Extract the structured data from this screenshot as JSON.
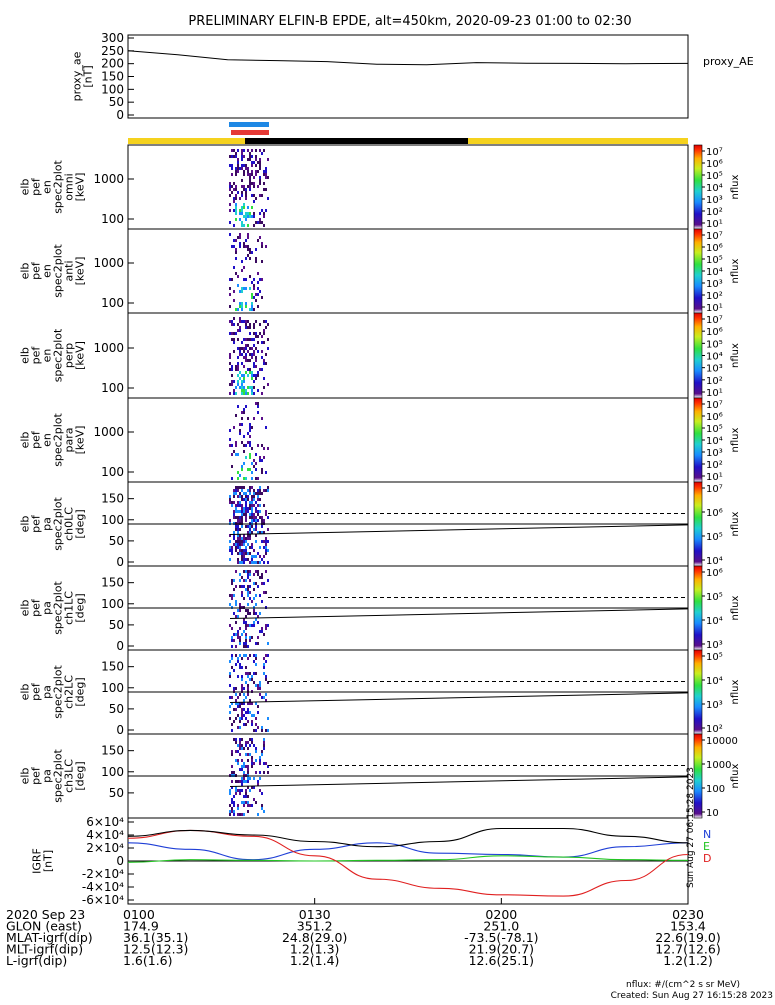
{
  "title": "PRELIMINARY ELFIN-B EPDE, alt=450km, 2020-09-23 01:00 to 02:30",
  "colors": {
    "yellow_bar": "#f5d21e",
    "black_bar": "#000000",
    "blue_mark": "#1e88e5",
    "red_mark": "#e53935",
    "bx": "#1f3fd6",
    "by": "#22c422",
    "bz": "#e02020",
    "bt": "#000000"
  },
  "chart_data": [
    {
      "name": "proxy_ae",
      "type": "line",
      "ylabel": "proxy_ae [nT]",
      "legend": "proxy_AE",
      "ylim": [
        0,
        300
      ],
      "yticks": [
        "0",
        "50",
        "100",
        "150",
        "200",
        "250",
        "300"
      ],
      "x_minutes": [
        0,
        8,
        16,
        24,
        32,
        40,
        48,
        56,
        64,
        72,
        80,
        90
      ],
      "values": [
        250,
        235,
        215,
        212,
        208,
        198,
        196,
        204,
        202,
        201,
        200,
        201
      ]
    },
    {
      "name": "omni",
      "type": "heatmap",
      "ylabel": "elb pef en spec2plot omni [keV]",
      "yticks": [
        "100",
        "1000"
      ],
      "colorbar": {
        "label": "nflux",
        "ticks": [
          "10¹",
          "10²",
          "10³",
          "10⁴",
          "10⁵",
          "10⁶",
          "10⁷"
        ]
      }
    },
    {
      "name": "anti",
      "type": "heatmap",
      "ylabel": "elb pef en spec2plot anti [keV]",
      "yticks": [
        "100",
        "1000"
      ],
      "colorbar": {
        "label": "nflux",
        "ticks": [
          "10¹",
          "10²",
          "10³",
          "10⁴",
          "10⁵",
          "10⁶",
          "10⁷"
        ]
      }
    },
    {
      "name": "perp",
      "type": "heatmap",
      "ylabel": "elb pef en spec2plot perp [keV]",
      "yticks": [
        "100",
        "1000"
      ],
      "colorbar": {
        "label": "nflux",
        "ticks": [
          "10¹",
          "10²",
          "10³",
          "10⁴",
          "10⁵",
          "10⁶",
          "10⁷"
        ]
      }
    },
    {
      "name": "para",
      "type": "heatmap",
      "ylabel": "elb pef en spec2plot para [keV]",
      "yticks": [
        "100",
        "1000"
      ],
      "colorbar": {
        "label": "nflux",
        "ticks": [
          "10¹",
          "10²",
          "10³",
          "10⁴",
          "10⁵",
          "10⁶",
          "10⁷"
        ]
      }
    },
    {
      "name": "ch0LC",
      "type": "heatmap",
      "ylabel": "elb pef pa spec2plot ch0LC [deg]",
      "yticks": [
        "0",
        "50",
        "100",
        "150"
      ],
      "colorbar": {
        "label": "nflux",
        "ticks": [
          "10⁴",
          "10⁵",
          "10⁶",
          "10⁷"
        ]
      }
    },
    {
      "name": "ch1LC",
      "type": "heatmap",
      "ylabel": "elb pef pa spec2plot ch1LC [deg]",
      "yticks": [
        "0",
        "50",
        "100",
        "150"
      ],
      "colorbar": {
        "label": "nflux",
        "ticks": [
          "10³",
          "10⁴",
          "10⁵",
          "10⁶"
        ]
      }
    },
    {
      "name": "ch2LC",
      "type": "heatmap",
      "ylabel": "elb pef pa spec2plot ch2LC [deg]",
      "yticks": [
        "0",
        "50",
        "100",
        "150"
      ],
      "colorbar": {
        "label": "nflux",
        "ticks": [
          "10²",
          "10³",
          "10⁴",
          "10⁵"
        ]
      }
    },
    {
      "name": "ch3LC",
      "type": "heatmap",
      "ylabel": "elb pef pa spec2plot ch3LC [deg]",
      "yticks": [
        "50",
        "100",
        "150"
      ],
      "colorbar": {
        "label": "nflux",
        "ticks": [
          "10",
          "100",
          "1000",
          "10000"
        ]
      }
    },
    {
      "name": "igrf",
      "type": "line",
      "ylabel": "IGRF [nT]",
      "ylim": [
        -60000,
        60000
      ],
      "yticks": [
        "-6×10⁴",
        "-4×10⁴",
        "-2×10⁴",
        "0",
        "2×10⁴",
        "4×10⁴",
        "6×10⁴"
      ],
      "side_labels": [
        "N",
        "E",
        "D"
      ],
      "x_minutes": [
        0,
        10,
        20,
        30,
        40,
        50,
        60,
        70,
        80,
        90
      ],
      "series": [
        {
          "name": "N",
          "values": [
            28000,
            18000,
            2000,
            18000,
            28000,
            12000,
            10000,
            6000,
            22000,
            28000
          ]
        },
        {
          "name": "E",
          "values": [
            -2000,
            2000,
            1000,
            0,
            1000,
            2000,
            8000,
            6000,
            2000,
            1000
          ]
        },
        {
          "name": "D",
          "values": [
            35000,
            47000,
            38000,
            8000,
            -28000,
            -42000,
            -52000,
            -54000,
            -30000,
            10000
          ]
        },
        {
          "name": "T",
          "values": [
            38000,
            47000,
            40000,
            30000,
            22000,
            30000,
            50000,
            50000,
            38000,
            28000
          ]
        }
      ]
    }
  ],
  "spectrogram_note": "Sun Aug 27 06:15:28 2023",
  "footer": {
    "rows": [
      {
        "label": "2020 Sep 23",
        "values": [
          "0100",
          "0130",
          "0200",
          "0230"
        ]
      },
      {
        "label": "GLON (east)",
        "values": [
          "174.9",
          "351.2",
          "251.0",
          "153.4"
        ]
      },
      {
        "label": "MLAT-igrf(dip)",
        "values": [
          "36.1(35.1)",
          "24.8(29.0)",
          "-73.5(-78.1)",
          "22.6(19.0)"
        ]
      },
      {
        "label": "MLT-igrf(dip)",
        "values": [
          "12.5(12.3)",
          "1.2(1.3)",
          "21.9(20.7)",
          "12.7(12.6)"
        ]
      },
      {
        "label": "L-igrf(dip)",
        "values": [
          "1.6(1.6)",
          "1.2(1.4)",
          "12.6(25.1)",
          "1.2(1.2)"
        ]
      }
    ],
    "units": "nflux: #/(cm^2 s sr MeV)",
    "created": "Created: Sun Aug 27 16:15:28 2023"
  }
}
